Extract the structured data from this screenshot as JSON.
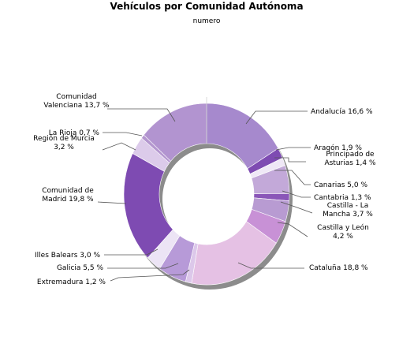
{
  "chart_data": {
    "type": "pie",
    "title": "Vehículos por Comunidad Autónoma",
    "subtitle": "numero",
    "slices": [
      {
        "label": "Andalucía 16,6 %",
        "value": 16.6,
        "color": "#a689cd"
      },
      {
        "label": "Aragón 1,9 %",
        "value": 1.9,
        "color": "#7e4bb2"
      },
      {
        "label": "Principado de Asturias 1,4 %",
        "value": 1.4,
        "color": "#efe8f6"
      },
      {
        "label": "Canarias 5,0 %",
        "value": 5.0,
        "color": "#c3a9d9"
      },
      {
        "label": "Cantabria 1,3 %",
        "value": 1.3,
        "color": "#8a56b8"
      },
      {
        "label": "Castilla - La Mancha 3,7 %",
        "value": 3.7,
        "color": "#b89bd2"
      },
      {
        "label": "Castilla y León 4,2 %",
        "value": 4.2,
        "color": "#c891d6"
      },
      {
        "label": "Cataluña 18,8 %",
        "value": 18.8,
        "color": "#e5c1e4"
      },
      {
        "label": "Extremadura 1,2 %",
        "value": 1.2,
        "color": "#dcc8ea"
      },
      {
        "label": "Galicia 5,5 %",
        "value": 5.5,
        "color": "#b79ad8"
      },
      {
        "label": "Illes Balears 3,0 %",
        "value": 3.0,
        "color": "#ece4f5"
      },
      {
        "label": "Comunidad de Madrid 19,8 %",
        "value": 19.8,
        "color": "#7e4bb2"
      },
      {
        "label": "Región de Murcia 3,2 %",
        "value": 3.2,
        "color": "#dccbea"
      },
      {
        "label": "La Rioja 0,7 %",
        "value": 0.7,
        "color": "#b497cf"
      },
      {
        "label": "Comunidad Valenciana 13,7 %",
        "value": 13.7,
        "color": "#b294d0"
      }
    ]
  }
}
